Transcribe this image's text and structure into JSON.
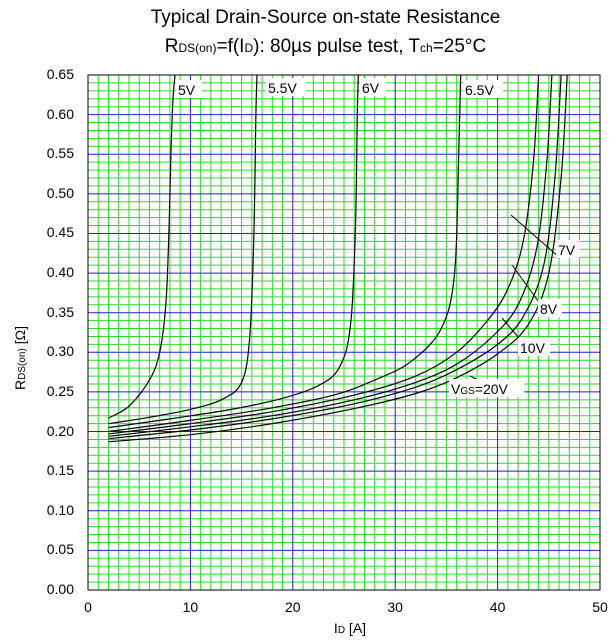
{
  "chart_data": {
    "type": "line",
    "title_line1": "Typical Drain-Source on-state Resistance",
    "title_line2": {
      "r": "R",
      "r_sub": "DS(on)",
      "mid": "=f(I",
      "i_sub": "D",
      "rest": "): 80µs pulse test, T",
      "t_sub": "ch",
      "end": "=25°C"
    },
    "xlabel": {
      "main": "I",
      "sub": "D",
      "unit": " [A]"
    },
    "ylabel": {
      "main": "R",
      "sub": "DS(on)",
      "unit": " [Ω]"
    },
    "xlim": [
      0,
      50
    ],
    "ylim": [
      0,
      0.65
    ],
    "xticks": [
      "0",
      "10",
      "20",
      "30",
      "40",
      "50"
    ],
    "yticks": [
      "0.00",
      "0.05",
      "0.10",
      "0.15",
      "0.20",
      "0.25",
      "0.30",
      "0.35",
      "0.40",
      "0.45",
      "0.50",
      "0.55",
      "0.60",
      "0.65"
    ],
    "grid": true,
    "series_labels": {
      "v5": "5V",
      "v55": "5.5V",
      "v6": "6V",
      "v65": "6.5V",
      "v7": "7V",
      "v8": "8V",
      "v10": "10V",
      "v20": {
        "main": "V",
        "sub": "GS",
        "rest": "=20V"
      }
    },
    "series": [
      {
        "name": "5V",
        "x": [
          2,
          4,
          6,
          7,
          7.6,
          7.9,
          8.1,
          8.3,
          8.5
        ],
        "y": [
          0.217,
          0.232,
          0.265,
          0.3,
          0.36,
          0.45,
          0.55,
          0.62,
          0.65
        ]
      },
      {
        "name": "5.5V",
        "x": [
          2,
          6,
          10,
          13,
          15,
          15.8,
          16.2,
          16.4,
          16.5
        ],
        "y": [
          0.21,
          0.218,
          0.228,
          0.24,
          0.262,
          0.32,
          0.45,
          0.6,
          0.65
        ]
      },
      {
        "name": "6V",
        "x": [
          2,
          8,
          14,
          19,
          22.5,
          24.5,
          25.6,
          26.1,
          26.3,
          26.4
        ],
        "y": [
          0.205,
          0.216,
          0.228,
          0.242,
          0.258,
          0.28,
          0.33,
          0.45,
          0.6,
          0.65
        ]
      },
      {
        "name": "6.5V",
        "x": [
          2,
          10,
          18,
          24,
          28,
          31.5,
          34.5,
          35.8,
          36.2,
          36.4
        ],
        "y": [
          0.2,
          0.214,
          0.23,
          0.246,
          0.265,
          0.288,
          0.33,
          0.4,
          0.55,
          0.65
        ]
      },
      {
        "name": "7V",
        "x": [
          2,
          10,
          18,
          26,
          32,
          36,
          39,
          41,
          42.5,
          43.5,
          44
        ],
        "y": [
          0.197,
          0.21,
          0.225,
          0.246,
          0.27,
          0.3,
          0.34,
          0.38,
          0.44,
          0.54,
          0.65
        ]
      },
      {
        "name": "8V",
        "x": [
          2,
          10,
          18,
          26,
          32,
          36,
          39.5,
          42,
          43.8,
          44.8,
          45.3
        ],
        "y": [
          0.194,
          0.206,
          0.22,
          0.24,
          0.262,
          0.285,
          0.32,
          0.36,
          0.43,
          0.54,
          0.65
        ]
      },
      {
        "name": "10V",
        "x": [
          2,
          10,
          18,
          26,
          32,
          36,
          40,
          42.5,
          44.5,
          45.6,
          46.2
        ],
        "y": [
          0.191,
          0.202,
          0.216,
          0.235,
          0.256,
          0.278,
          0.31,
          0.345,
          0.41,
          0.52,
          0.65
        ]
      },
      {
        "name": "VGS=20V",
        "x": [
          2,
          10,
          18,
          26,
          32,
          36,
          40,
          43,
          45,
          46.2,
          46.8
        ],
        "y": [
          0.187,
          0.196,
          0.21,
          0.229,
          0.248,
          0.268,
          0.298,
          0.335,
          0.4,
          0.52,
          0.65
        ]
      }
    ]
  }
}
